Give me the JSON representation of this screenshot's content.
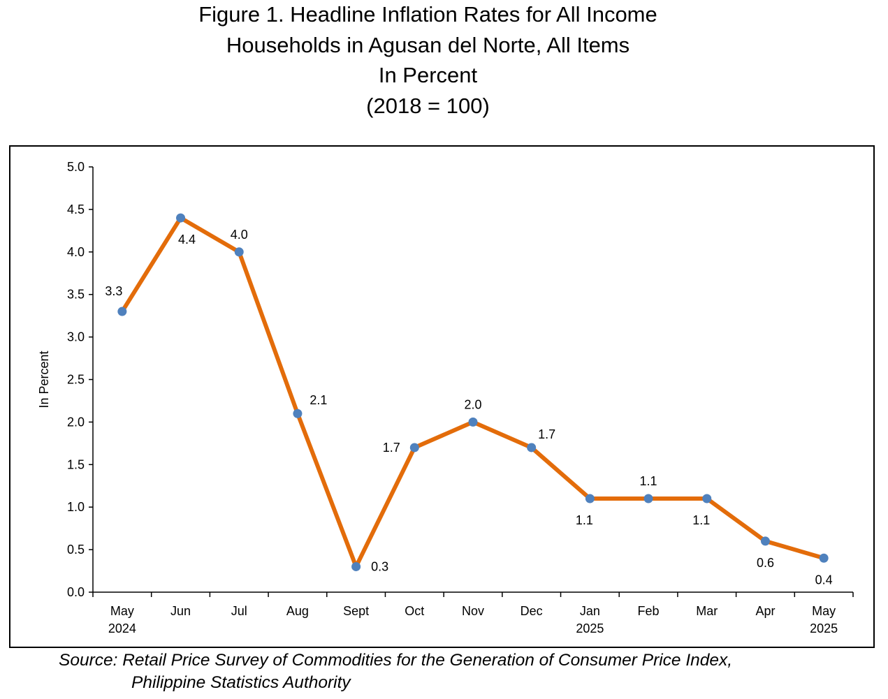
{
  "title": {
    "lines": [
      "Figure 1. Headline Inflation Rates for All Income",
      "Households in Agusan del Norte, All Items",
      "In Percent",
      "(2018 = 100)"
    ]
  },
  "source": {
    "lines": [
      "Source: Retail Price Survey of Commodities for the Generation of Consumer Price Index,",
      "Philippine Statistics Authority"
    ]
  },
  "chart_data": {
    "type": "line",
    "title": "Figure 1. Headline Inflation Rates for All Income Households in Agusan del Norte, All Items In Percent (2018 = 100)",
    "xlabel": "",
    "ylabel": "In  Percent",
    "ylim": [
      0,
      5
    ],
    "yticks": [
      "0.0",
      "0.5",
      "1.0",
      "1.5",
      "2.0",
      "2.5",
      "3.0",
      "3.5",
      "4.0",
      "4.5",
      "5.0"
    ],
    "categories": [
      [
        "May",
        "2024"
      ],
      [
        "Jun"
      ],
      [
        "Jul"
      ],
      [
        "Aug"
      ],
      [
        "Sept"
      ],
      [
        "Oct"
      ],
      [
        "Nov"
      ],
      [
        "Dec"
      ],
      [
        "Jan",
        "2025"
      ],
      [
        "Feb"
      ],
      [
        "Mar"
      ],
      [
        "Apr"
      ],
      [
        "May",
        "2025"
      ]
    ],
    "series": [
      {
        "values": [
          3.3,
          4.4,
          4.0,
          2.1,
          0.3,
          1.7,
          2.0,
          1.7,
          1.1,
          1.1,
          1.1,
          0.6,
          0.4
        ],
        "labels": [
          "3.3",
          "4.4",
          "4.0",
          "2.1",
          "0.3",
          "1.7",
          "2.0",
          "1.7",
          "1.1",
          "1.1",
          "1.1",
          "0.6",
          "0.4"
        ],
        "label_positions": [
          "above-left",
          "below",
          "above",
          "above-right",
          "right",
          "left",
          "above",
          "above-right",
          "below",
          "above",
          "below",
          "below",
          "below"
        ],
        "line_color": "#E36C0A",
        "marker_color": "#4F81BD"
      }
    ],
    "grid": false,
    "legend": "none"
  }
}
